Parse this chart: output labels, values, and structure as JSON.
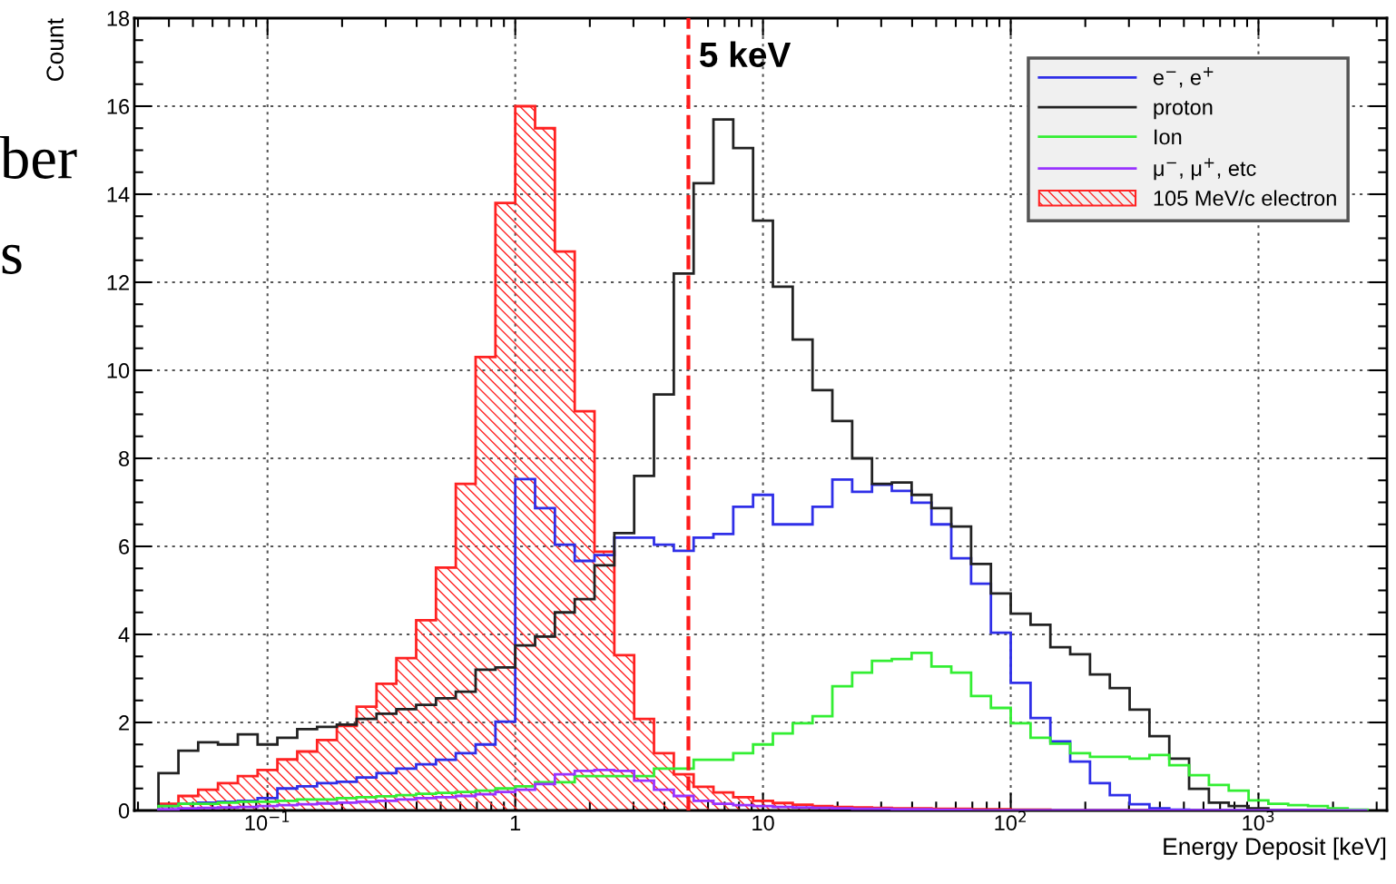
{
  "chart_data": {
    "type": "histogram",
    "xlabel": "Energy Deposit [keV]",
    "ylabel": "Count",
    "log": "x",
    "grid": true,
    "legend": "top right",
    "xlim": [
      0.029,
      3300
    ],
    "xticks": [
      {
        "value": 0.1,
        "label": "10$^{−1}$"
      },
      1,
      10,
      {
        "value": 100,
        "label": "10$^{2}$"
      },
      {
        "value": 1000,
        "label": "10$^{3}$"
      }
    ],
    "ylim": [
      0,
      18
    ],
    "yticks": [
      0,
      2,
      4,
      6,
      8,
      10,
      12,
      14,
      16,
      18
    ],
    "bins": [
      0.0363,
      0.0437,
      0.0525,
      0.0631,
      0.0759,
      0.0912,
      0.1096,
      0.1318,
      0.1585,
      0.1905,
      0.229,
      0.2754,
      0.3311,
      0.3981,
      0.4786,
      0.5754,
      0.6918,
      0.8318,
      1,
      1.2023,
      1.4454,
      1.7378,
      2.0893,
      2.5119,
      3.02,
      3.6308,
      4.3652,
      5.2481,
      6.3096,
      7.5858,
      9.1201,
      10.965,
      13.183,
      15.849,
      19.055,
      22.909,
      27.542,
      33.113,
      39.811,
      47.863,
      57.544,
      69.183,
      83.176,
      100,
      120.23,
      144.54,
      173.78,
      208.93,
      251.19,
      302,
      363.08,
      436.52,
      524.81,
      630.96,
      758.58,
      912.01,
      1096.5,
      1318.3,
      1584.9,
      1905.5,
      2290.9,
      2754.2
    ],
    "series": [
      {
        "name": "105 MeV/c electron",
        "color": "#ff2222",
        "values": [
          0.15,
          0.33,
          0.47,
          0.62,
          0.78,
          0.92,
          1.16,
          1.34,
          1.6,
          1.92,
          2.36,
          2.88,
          3.46,
          4.32,
          5.52,
          7.42,
          10.3,
          13.8,
          16.0,
          15.5,
          12.7,
          9.07,
          5.88,
          3.53,
          2.08,
          1.3,
          0.82,
          0.54,
          0.41,
          0.3,
          0.22,
          0.17,
          0.13,
          0.1,
          0.08,
          0.07,
          0.06,
          0.05,
          0.05,
          0.04,
          0.04,
          0.03,
          0.03,
          0.02,
          0.02,
          0,
          0,
          0,
          0,
          0,
          0,
          0,
          0,
          0,
          0,
          0,
          0,
          0,
          0,
          0,
          0
        ]
      },
      {
        "name": "e$^{−}$, e$^{+}$",
        "color": "#2f2fe8",
        "values": [
          0.1,
          0.15,
          0.18,
          0.2,
          0.22,
          0.28,
          0.5,
          0.55,
          0.62,
          0.65,
          0.75,
          0.85,
          0.95,
          1.05,
          1.15,
          1.3,
          1.5,
          2.02,
          7.53,
          6.87,
          6.04,
          5.67,
          5.8,
          6.2,
          6.2,
          6.04,
          5.9,
          6.2,
          6.28,
          6.9,
          7.17,
          6.5,
          6.5,
          6.9,
          7.52,
          7.24,
          7.4,
          7.26,
          6.99,
          6.5,
          5.73,
          5.15,
          4.04,
          2.9,
          2.1,
          1.57,
          1.11,
          0.62,
          0.35,
          0.14,
          0.05,
          0.02,
          0,
          0,
          0,
          0,
          0,
          0,
          0,
          0,
          0
        ]
      },
      {
        "name": "proton",
        "color": "#222222",
        "values": [
          0.85,
          1.36,
          1.55,
          1.5,
          1.73,
          1.5,
          1.65,
          1.85,
          1.9,
          1.95,
          2.08,
          2.2,
          2.3,
          2.4,
          2.55,
          2.7,
          3.2,
          3.25,
          3.75,
          3.95,
          4.5,
          4.8,
          5.57,
          6.3,
          7.6,
          9.45,
          12.2,
          14.25,
          15.7,
          15.05,
          13.4,
          11.9,
          10.7,
          9.55,
          8.85,
          8.0,
          7.42,
          7.45,
          7.17,
          6.87,
          6.45,
          5.6,
          4.93,
          4.47,
          4.22,
          3.71,
          3.55,
          3.09,
          2.78,
          2.29,
          1.69,
          1.18,
          0.49,
          0.18,
          0.1,
          0.05,
          0,
          0,
          0,
          0,
          0
        ]
      },
      {
        "name": "Ion",
        "color": "#33ee33",
        "values": [
          0.1,
          0.15,
          0.15,
          0.18,
          0.2,
          0.2,
          0.22,
          0.25,
          0.25,
          0.28,
          0.3,
          0.32,
          0.35,
          0.38,
          0.4,
          0.42,
          0.45,
          0.5,
          0.55,
          0.64,
          0.64,
          0.78,
          0.78,
          0.78,
          0.78,
          0.95,
          0.95,
          1.15,
          1.15,
          1.3,
          1.5,
          1.75,
          1.98,
          2.14,
          2.82,
          3.13,
          3.4,
          3.44,
          3.58,
          3.27,
          3.13,
          2.6,
          2.33,
          1.98,
          1.65,
          1.52,
          1.3,
          1.22,
          1.22,
          1.18,
          1.26,
          1.03,
          0.8,
          0.58,
          0.45,
          0.23,
          0.15,
          0.12,
          0.1,
          0.05,
          0.02
        ]
      },
      {
        "name": "μ$^{−}$, μ$^{+}$, etc",
        "color": "#9933ff",
        "values": [
          0.03,
          0.05,
          0.06,
          0.07,
          0.08,
          0.1,
          0.12,
          0.14,
          0.16,
          0.18,
          0.2,
          0.22,
          0.25,
          0.28,
          0.3,
          0.33,
          0.37,
          0.42,
          0.47,
          0.6,
          0.82,
          0.9,
          0.92,
          0.9,
          0.68,
          0.47,
          0.33,
          0.22,
          0.15,
          0.12,
          0.1,
          0.08,
          0.07,
          0.06,
          0.05,
          0.04,
          0.04,
          0.03,
          0.03,
          0.02,
          0.02,
          0,
          0,
          0,
          0,
          0,
          0,
          0,
          0,
          0,
          0,
          0,
          0,
          0,
          0,
          0,
          0,
          0,
          0,
          0,
          0
        ]
      }
    ],
    "ref_lines": [
      {
        "axis": "x",
        "value": 5,
        "label": "5 keV",
        "color": "#ff1a1a",
        "line_style": "dashed"
      }
    ],
    "annotations": [
      "ber",
      "s"
    ]
  }
}
